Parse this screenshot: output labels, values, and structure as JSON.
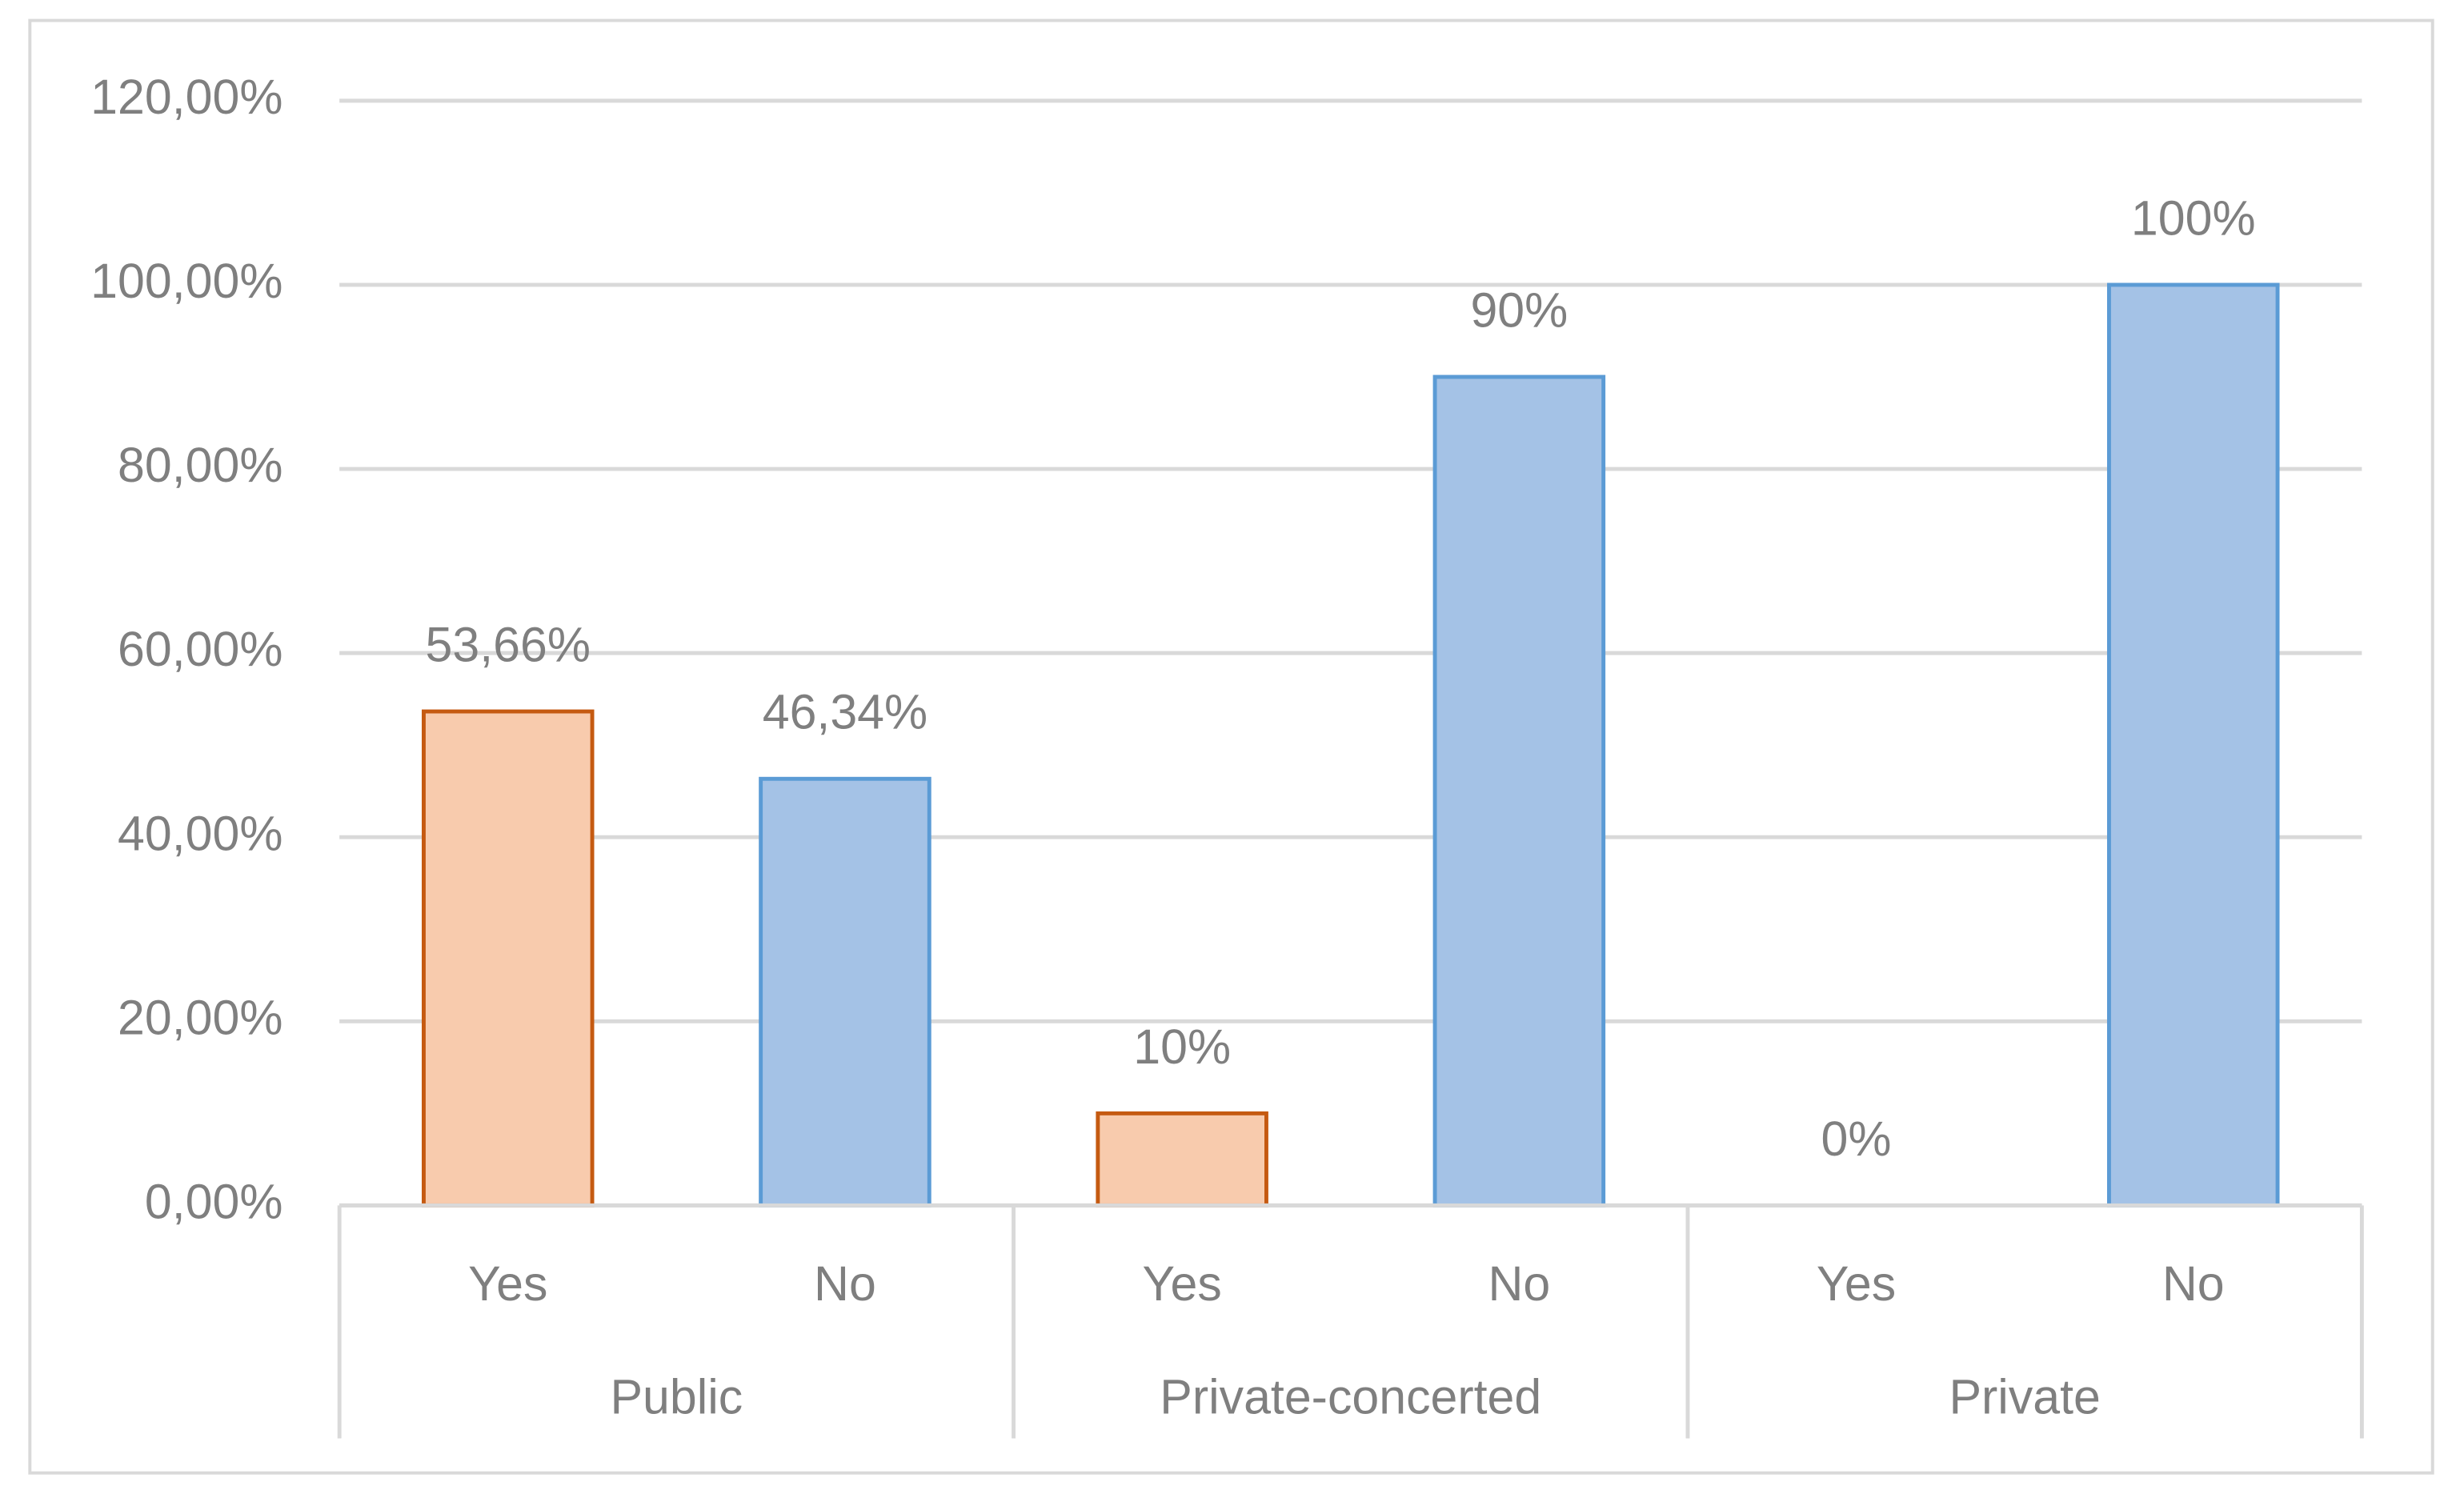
{
  "chart_data": {
    "type": "bar",
    "categories": [
      "Yes",
      "No",
      "Yes",
      "No",
      "Yes",
      "No"
    ],
    "groups": [
      "Public",
      "Private-concerted",
      "Private"
    ],
    "values": [
      53.66,
      46.34,
      10,
      90,
      0,
      100
    ],
    "value_labels": [
      "53,66%",
      "46,34%",
      "10%",
      "90%",
      "0%",
      "100%"
    ],
    "colors": [
      "#f8cbad",
      "#a4c2e6",
      "#f8cbad",
      "#a4c2e6",
      "#f8cbad",
      "#a4c2e6"
    ],
    "edgecolors": [
      "#c55a11",
      "#5b9bd5",
      "#c55a11",
      "#5b9bd5",
      "#c55a11",
      "#5b9bd5"
    ],
    "ylim": [
      0,
      120
    ],
    "yticks": [
      {
        "value": 0,
        "label": "0,00%"
      },
      {
        "value": 20,
        "label": "20,00%"
      },
      {
        "value": 40,
        "label": "40,00%"
      },
      {
        "value": 60,
        "label": "60,00%"
      },
      {
        "value": 80,
        "label": "80,00%"
      },
      {
        "value": 100,
        "label": "100,00%"
      },
      {
        "value": 120,
        "label": "120,00%"
      }
    ],
    "grid": true
  }
}
